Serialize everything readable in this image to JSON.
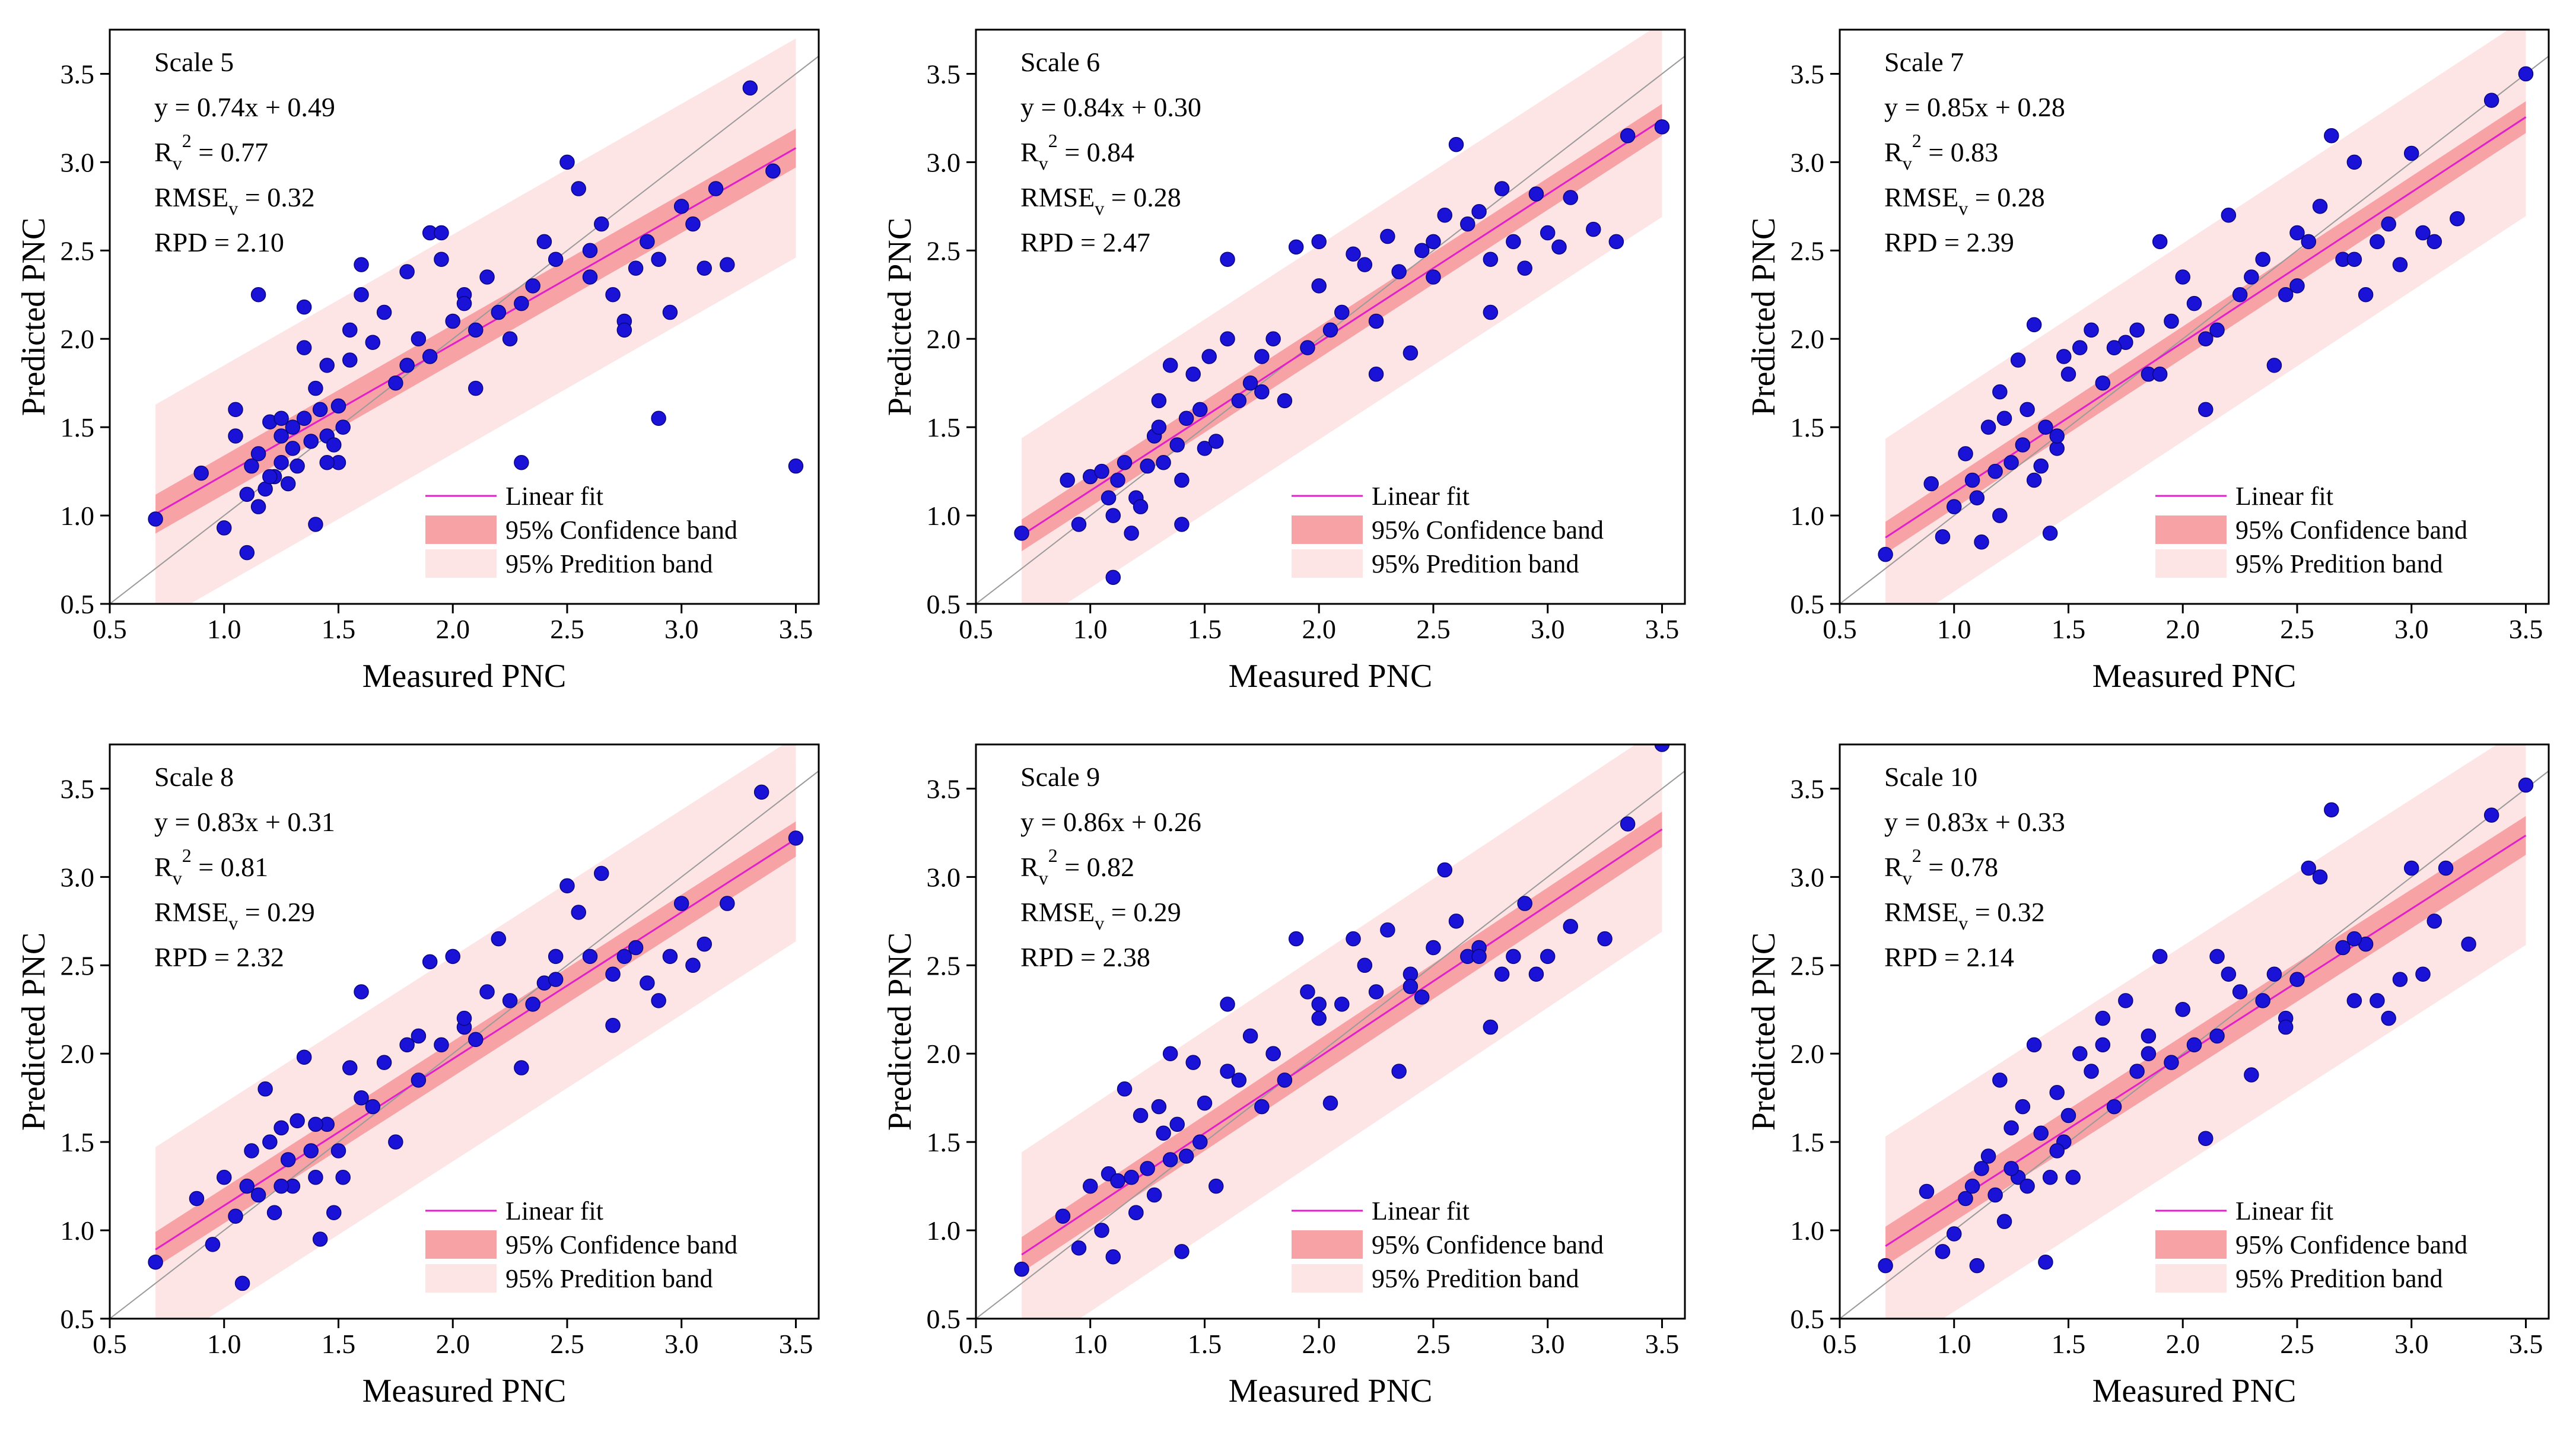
{
  "chart_data": [
    {
      "type": "scatter",
      "title": "",
      "panel_label": "Scale 5",
      "xlabel": "Measured PNC",
      "ylabel": "Predicted PNC",
      "xlim": [
        0.5,
        3.6
      ],
      "ylim": [
        0.5,
        3.75
      ],
      "xticks": [
        "0.5",
        "1.0",
        "1.5",
        "2.0",
        "2.5",
        "3.0",
        "3.5"
      ],
      "yticks": [
        "0.5",
        "1.0",
        "1.5",
        "2.0",
        "2.5",
        "3.0",
        "3.5"
      ],
      "fit": {
        "slope": 0.74,
        "intercept": 0.49,
        "x_range": [
          0.7,
          3.5
        ]
      },
      "band_halfwidth": {
        "confidence": 0.11,
        "prediction": 0.62
      },
      "stats": {
        "equation": "y = 0.74x + 0.49",
        "r2_value": "= 0.77",
        "rmse_value": "= 0.32",
        "rpd": "RPD = 2.10"
      },
      "legend": [
        "Linear fit",
        "95% Confidence band",
        "95% Predition band"
      ],
      "x": [
        0.7,
        0.9,
        1.0,
        1.05,
        1.1,
        1.1,
        1.12,
        1.15,
        1.15,
        1.18,
        1.2,
        1.22,
        1.25,
        1.25,
        1.28,
        1.3,
        1.3,
        1.32,
        1.35,
        1.35,
        1.38,
        1.4,
        1.4,
        1.42,
        1.45,
        1.45,
        1.48,
        1.5,
        1.5,
        1.52,
        1.55,
        1.55,
        1.6,
        1.65,
        1.7,
        1.75,
        1.8,
        1.85,
        1.9,
        1.9,
        1.95,
        2.0,
        2.05,
        2.1,
        2.15,
        2.2,
        2.25,
        2.3,
        2.35,
        2.4,
        2.45,
        2.5,
        2.55,
        2.6,
        2.65,
        2.7,
        2.75,
        2.8,
        2.85,
        2.9,
        2.95,
        3.0,
        3.05,
        3.1,
        3.15,
        3.2,
        3.3,
        3.4,
        3.5,
        1.05,
        1.2,
        1.35,
        1.6,
        1.8,
        1.95,
        2.1,
        2.6,
        2.75,
        2.9,
        1.25,
        1.45,
        1.15,
        2.05,
        2.3
      ],
      "y": [
        0.98,
        1.24,
        0.93,
        1.6,
        0.79,
        1.12,
        1.28,
        1.05,
        1.35,
        1.15,
        1.53,
        1.22,
        1.45,
        1.3,
        1.18,
        1.5,
        1.38,
        1.28,
        1.55,
        1.95,
        1.42,
        0.95,
        1.72,
        1.6,
        1.45,
        1.85,
        1.4,
        1.62,
        1.3,
        1.5,
        2.05,
        1.88,
        2.25,
        1.98,
        2.15,
        1.75,
        1.85,
        2.0,
        1.9,
        2.6,
        2.45,
        2.1,
        2.25,
        1.72,
        2.35,
        2.15,
        2.0,
        2.2,
        2.3,
        2.55,
        2.45,
        3.0,
        2.85,
        2.35,
        2.65,
        2.25,
        2.1,
        2.4,
        2.55,
        2.45,
        2.15,
        2.75,
        2.65,
        2.4,
        2.85,
        2.42,
        3.42,
        2.95,
        1.28,
        1.45,
        1.22,
        2.18,
        2.42,
        2.38,
        2.6,
        2.05,
        2.5,
        2.05,
        1.55,
        1.55,
        1.3,
        2.25,
        2.2,
        1.3
      ]
    },
    {
      "type": "scatter",
      "title": "",
      "panel_label": "Scale 6",
      "xlabel": "Measured PNC",
      "ylabel": "Predicted PNC",
      "xlim": [
        0.5,
        3.6
      ],
      "ylim": [
        0.5,
        3.75
      ],
      "xticks": [
        "0.5",
        "1.0",
        "1.5",
        "2.0",
        "2.5",
        "3.0",
        "3.5"
      ],
      "yticks": [
        "0.5",
        "1.0",
        "1.5",
        "2.0",
        "2.5",
        "3.0",
        "3.5"
      ],
      "fit": {
        "slope": 0.84,
        "intercept": 0.3,
        "x_range": [
          0.7,
          3.5
        ]
      },
      "band_halfwidth": {
        "confidence": 0.09,
        "prediction": 0.55
      },
      "stats": {
        "equation": "y = 0.84x + 0.30",
        "r2_value": "= 0.84",
        "rmse_value": "= 0.28",
        "rpd": "RPD = 2.47"
      },
      "legend": [
        "Linear fit",
        "95% Confidence band",
        "95% Predition band"
      ],
      "x": [
        0.7,
        0.9,
        0.95,
        1.0,
        1.05,
        1.08,
        1.1,
        1.12,
        1.15,
        1.18,
        1.2,
        1.22,
        1.25,
        1.28,
        1.3,
        1.32,
        1.35,
        1.38,
        1.4,
        1.42,
        1.45,
        1.48,
        1.5,
        1.52,
        1.55,
        1.6,
        1.65,
        1.7,
        1.75,
        1.8,
        1.85,
        1.9,
        1.95,
        2.0,
        2.05,
        2.1,
        2.15,
        2.2,
        2.25,
        2.3,
        2.35,
        2.4,
        2.45,
        2.5,
        2.55,
        2.6,
        2.65,
        2.7,
        2.75,
        2.8,
        2.85,
        2.9,
        2.95,
        3.0,
        3.05,
        3.1,
        3.2,
        3.3,
        3.35,
        3.5,
        1.1,
        1.3,
        1.4,
        1.6,
        1.75,
        2.0,
        2.25,
        2.5,
        2.75
      ],
      "y": [
        0.9,
        1.2,
        0.95,
        1.22,
        1.25,
        1.1,
        0.65,
        1.2,
        1.3,
        0.9,
        1.1,
        1.05,
        1.28,
        1.45,
        1.65,
        1.3,
        1.85,
        1.4,
        0.95,
        1.55,
        1.8,
        1.6,
        1.38,
        1.9,
        1.42,
        2.45,
        1.65,
        1.75,
        1.9,
        2.0,
        1.65,
        2.52,
        1.95,
        2.55,
        2.05,
        2.15,
        2.48,
        2.42,
        1.8,
        2.58,
        2.38,
        1.92,
        2.5,
        2.35,
        2.7,
        3.1,
        2.65,
        2.72,
        2.15,
        2.85,
        2.55,
        2.4,
        2.82,
        2.6,
        2.52,
        2.8,
        2.62,
        2.55,
        3.15,
        3.2,
        1.0,
        1.5,
        1.2,
        2.0,
        1.7,
        2.3,
        2.1,
        2.55,
        2.45
      ]
    },
    {
      "type": "scatter",
      "title": "",
      "panel_label": "Scale 7",
      "xlabel": "Measured PNC",
      "ylabel": "Predicted PNC",
      "xlim": [
        0.5,
        3.6
      ],
      "ylim": [
        0.5,
        3.75
      ],
      "xticks": [
        "0.5",
        "1.0",
        "1.5",
        "2.0",
        "2.5",
        "3.0",
        "3.5"
      ],
      "yticks": [
        "0.5",
        "1.0",
        "1.5",
        "2.0",
        "2.5",
        "3.0",
        "3.5"
      ],
      "fit": {
        "slope": 0.85,
        "intercept": 0.28,
        "x_range": [
          0.7,
          3.5
        ]
      },
      "band_halfwidth": {
        "confidence": 0.09,
        "prediction": 0.56
      },
      "stats": {
        "equation": "y = 0.85x + 0.28",
        "r2_value": "= 0.83",
        "rmse_value": "= 0.28",
        "rpd": "RPD = 2.39"
      },
      "legend": [
        "Linear fit",
        "95% Confidence band",
        "95% Predition band"
      ],
      "x": [
        0.7,
        0.9,
        0.95,
        1.0,
        1.05,
        1.08,
        1.1,
        1.12,
        1.15,
        1.18,
        1.2,
        1.22,
        1.25,
        1.28,
        1.3,
        1.32,
        1.35,
        1.38,
        1.4,
        1.42,
        1.45,
        1.48,
        1.5,
        1.55,
        1.6,
        1.65,
        1.7,
        1.75,
        1.8,
        1.85,
        1.9,
        1.95,
        2.0,
        2.05,
        2.1,
        2.15,
        2.2,
        2.25,
        2.3,
        2.35,
        2.4,
        2.45,
        2.5,
        2.55,
        2.6,
        2.65,
        2.7,
        2.75,
        2.8,
        2.85,
        2.9,
        2.95,
        3.0,
        3.05,
        3.1,
        3.2,
        3.35,
        3.5,
        1.2,
        1.35,
        1.45,
        1.7,
        1.9,
        2.1,
        2.5,
        2.75
      ],
      "y": [
        0.78,
        1.18,
        0.88,
        1.05,
        1.35,
        1.2,
        1.1,
        0.85,
        1.5,
        1.25,
        1.7,
        1.55,
        1.3,
        1.88,
        1.4,
        1.6,
        2.08,
        1.28,
        1.5,
        0.9,
        1.38,
        1.9,
        1.8,
        1.95,
        2.05,
        1.75,
        1.95,
        1.98,
        2.05,
        1.8,
        2.55,
        2.1,
        2.35,
        2.2,
        1.6,
        2.05,
        2.7,
        2.25,
        2.35,
        2.45,
        1.85,
        2.25,
        2.6,
        2.55,
        2.75,
        3.15,
        2.45,
        3.0,
        2.25,
        2.55,
        2.65,
        2.42,
        3.05,
        2.6,
        2.55,
        2.68,
        3.35,
        3.5,
        1.0,
        1.2,
        1.45,
        1.95,
        1.8,
        2.0,
        2.3,
        2.45
      ]
    },
    {
      "type": "scatter",
      "title": "",
      "panel_label": "Scale 8",
      "xlabel": "Measured PNC",
      "ylabel": "Predicted PNC",
      "xlim": [
        0.5,
        3.6
      ],
      "ylim": [
        0.5,
        3.75
      ],
      "xticks": [
        "0.5",
        "1.0",
        "1.5",
        "2.0",
        "2.5",
        "3.0",
        "3.5"
      ],
      "yticks": [
        "0.5",
        "1.0",
        "1.5",
        "2.0",
        "2.5",
        "3.0",
        "3.5"
      ],
      "fit": {
        "slope": 0.83,
        "intercept": 0.31,
        "x_range": [
          0.7,
          3.5
        ]
      },
      "band_halfwidth": {
        "confidence": 0.1,
        "prediction": 0.58
      },
      "stats": {
        "equation": "y = 0.83x + 0.31",
        "r2_value": "= 0.81",
        "rmse_value": "= 0.29",
        "rpd": "RPD = 2.32"
      },
      "legend": [
        "Linear fit",
        "95% Confidence band",
        "95% Predition band"
      ],
      "x": [
        0.7,
        0.88,
        0.95,
        1.0,
        1.05,
        1.08,
        1.1,
        1.12,
        1.15,
        1.18,
        1.2,
        1.22,
        1.25,
        1.28,
        1.3,
        1.32,
        1.35,
        1.38,
        1.4,
        1.42,
        1.45,
        1.48,
        1.5,
        1.52,
        1.55,
        1.6,
        1.65,
        1.7,
        1.75,
        1.8,
        1.85,
        1.9,
        1.95,
        2.0,
        2.05,
        2.1,
        2.15,
        2.2,
        2.25,
        2.3,
        2.35,
        2.4,
        2.45,
        2.5,
        2.55,
        2.6,
        2.65,
        2.7,
        2.75,
        2.8,
        2.85,
        2.9,
        2.95,
        3.0,
        3.05,
        3.1,
        3.2,
        3.35,
        3.5,
        1.25,
        1.4,
        1.6,
        1.85,
        2.05,
        2.45,
        2.7
      ],
      "y": [
        0.82,
        1.18,
        0.92,
        1.3,
        1.08,
        0.7,
        1.25,
        1.45,
        1.2,
        1.8,
        1.5,
        1.1,
        1.58,
        1.4,
        1.25,
        1.62,
        1.98,
        1.45,
        1.3,
        0.95,
        1.6,
        1.1,
        1.45,
        1.3,
        1.92,
        2.35,
        1.7,
        1.95,
        1.5,
        2.05,
        1.85,
        2.52,
        2.05,
        2.55,
        2.15,
        2.08,
        2.35,
        2.65,
        2.3,
        1.92,
        2.28,
        2.4,
        2.55,
        2.95,
        2.8,
        2.55,
        3.02,
        2.45,
        2.55,
        2.6,
        2.4,
        2.3,
        2.55,
        2.85,
        2.5,
        2.62,
        2.85,
        3.48,
        3.22,
        1.25,
        1.6,
        1.75,
        2.1,
        2.2,
        2.42,
        2.16
      ]
    },
    {
      "type": "scatter",
      "title": "",
      "panel_label": "Scale 9",
      "xlabel": "Measured PNC",
      "ylabel": "Predicted PNC",
      "xlim": [
        0.5,
        3.6
      ],
      "ylim": [
        0.5,
        3.75
      ],
      "xticks": [
        "0.5",
        "1.0",
        "1.5",
        "2.0",
        "2.5",
        "3.0",
        "3.5"
      ],
      "yticks": [
        "0.5",
        "1.0",
        "1.5",
        "2.0",
        "2.5",
        "3.0",
        "3.5"
      ],
      "fit": {
        "slope": 0.86,
        "intercept": 0.26,
        "x_range": [
          0.7,
          3.5
        ]
      },
      "band_halfwidth": {
        "confidence": 0.1,
        "prediction": 0.58
      },
      "stats": {
        "equation": "y = 0.86x + 0.26",
        "r2_value": "= 0.82",
        "rmse_value": "= 0.29",
        "rpd": "RPD = 2.38"
      },
      "legend": [
        "Linear fit",
        "95% Confidence band",
        "95% Predition band"
      ],
      "x": [
        0.7,
        0.88,
        0.95,
        1.0,
        1.05,
        1.08,
        1.1,
        1.12,
        1.15,
        1.18,
        1.2,
        1.22,
        1.25,
        1.28,
        1.3,
        1.32,
        1.35,
        1.38,
        1.4,
        1.42,
        1.45,
        1.48,
        1.5,
        1.55,
        1.6,
        1.65,
        1.7,
        1.75,
        1.8,
        1.85,
        1.9,
        1.95,
        2.0,
        2.05,
        2.1,
        2.15,
        2.2,
        2.25,
        2.3,
        2.35,
        2.4,
        2.45,
        2.5,
        2.55,
        2.6,
        2.65,
        2.7,
        2.75,
        2.8,
        2.85,
        2.9,
        2.95,
        3.0,
        3.1,
        3.25,
        3.35,
        3.5,
        1.2,
        1.35,
        1.6,
        1.8,
        2.0,
        2.4,
        2.7
      ],
      "y": [
        0.78,
        1.08,
        0.9,
        1.25,
        1.0,
        1.32,
        0.85,
        1.28,
        1.8,
        1.3,
        1.1,
        1.65,
        1.35,
        1.2,
        1.7,
        1.55,
        2.0,
        1.6,
        0.88,
        1.42,
        1.95,
        1.5,
        1.72,
        1.25,
        2.28,
        1.85,
        2.1,
        1.7,
        2.0,
        1.85,
        2.65,
        2.35,
        2.2,
        1.72,
        2.28,
        2.65,
        2.5,
        2.35,
        2.7,
        1.9,
        2.45,
        2.32,
        2.6,
        3.04,
        2.75,
        2.55,
        2.6,
        2.15,
        2.45,
        2.55,
        2.85,
        2.45,
        2.55,
        2.72,
        2.65,
        3.3,
        3.75,
        1.1,
        1.4,
        1.9,
        2.0,
        2.28,
        2.38,
        2.55
      ]
    },
    {
      "type": "scatter",
      "title": "",
      "panel_label": "Scale 10",
      "xlabel": "Measured PNC",
      "ylabel": "Predicted PNC",
      "xlim": [
        0.5,
        3.6
      ],
      "ylim": [
        0.5,
        3.75
      ],
      "xticks": [
        "0.5",
        "1.0",
        "1.5",
        "2.0",
        "2.5",
        "3.0",
        "3.5"
      ],
      "yticks": [
        "0.5",
        "1.0",
        "1.5",
        "2.0",
        "2.5",
        "3.0",
        "3.5"
      ],
      "fit": {
        "slope": 0.83,
        "intercept": 0.33,
        "x_range": [
          0.7,
          3.5
        ]
      },
      "band_halfwidth": {
        "confidence": 0.11,
        "prediction": 0.62
      },
      "stats": {
        "equation": "y = 0.83x + 0.33",
        "r2_value": "= 0.78",
        "rmse_value": "= 0.32",
        "rpd": "RPD = 2.14"
      },
      "legend": [
        "Linear fit",
        "95% Confidence band",
        "95% Predition band"
      ],
      "x": [
        0.7,
        0.88,
        0.95,
        1.0,
        1.05,
        1.08,
        1.1,
        1.12,
        1.15,
        1.18,
        1.2,
        1.22,
        1.25,
        1.28,
        1.3,
        1.32,
        1.35,
        1.38,
        1.4,
        1.42,
        1.45,
        1.48,
        1.5,
        1.52,
        1.55,
        1.6,
        1.65,
        1.7,
        1.75,
        1.8,
        1.85,
        1.9,
        1.95,
        2.0,
        2.05,
        2.1,
        2.15,
        2.2,
        2.25,
        2.3,
        2.35,
        2.4,
        2.45,
        2.5,
        2.55,
        2.6,
        2.65,
        2.7,
        2.75,
        2.8,
        2.85,
        2.9,
        2.95,
        3.0,
        3.05,
        3.1,
        3.15,
        3.25,
        3.35,
        3.5,
        1.25,
        1.45,
        1.65,
        1.85,
        2.15,
        2.45,
        2.75
      ],
      "y": [
        0.8,
        1.22,
        0.88,
        0.98,
        1.18,
        1.25,
        0.8,
        1.35,
        1.42,
        1.2,
        1.85,
        1.05,
        1.58,
        1.3,
        1.7,
        1.25,
        2.05,
        1.55,
        0.82,
        1.3,
        1.78,
        1.5,
        1.65,
        1.3,
        2.0,
        1.9,
        2.2,
        1.7,
        2.3,
        1.9,
        2.1,
        2.55,
        1.95,
        2.25,
        2.05,
        1.52,
        2.55,
        2.45,
        2.35,
        1.88,
        2.3,
        2.45,
        2.2,
        2.42,
        3.05,
        3.0,
        3.38,
        2.6,
        2.3,
        2.62,
        2.3,
        2.2,
        2.42,
        3.05,
        2.45,
        2.75,
        3.05,
        2.62,
        3.35,
        3.52,
        1.35,
        1.45,
        2.05,
        2.0,
        2.1,
        2.15,
        2.65
      ]
    }
  ]
}
